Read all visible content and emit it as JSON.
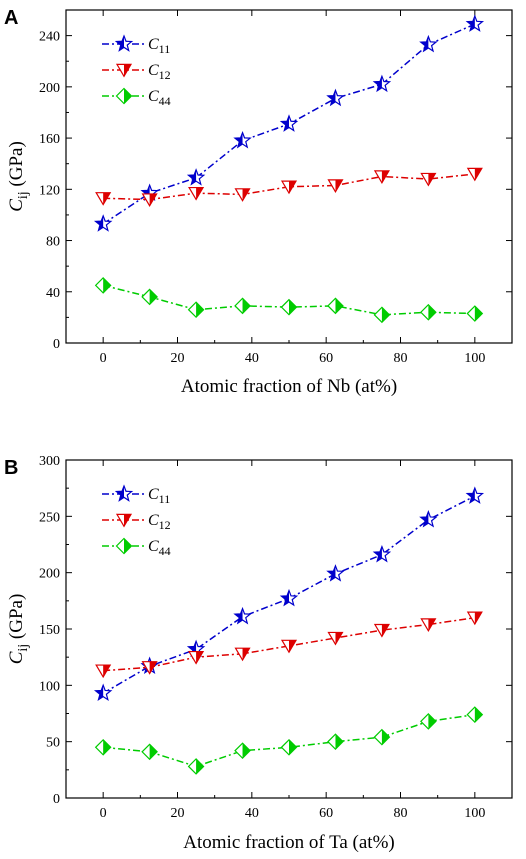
{
  "chart_data": [
    {
      "type": "line",
      "panel_label": "A",
      "xlabel": "Atomic fraction of Nb (at%)",
      "ylabel": "C",
      "ylabel_sub": "ij",
      "ylabel_unit": " (GPa)",
      "xlim": [
        -10,
        110
      ],
      "ylim": [
        0,
        260
      ],
      "xticks": [
        0,
        20,
        40,
        60,
        80,
        100
      ],
      "yticks": [
        0,
        40,
        80,
        120,
        160,
        200,
        240
      ],
      "x": [
        0,
        12.5,
        25,
        37.5,
        50,
        62.5,
        75,
        87.5,
        100
      ],
      "legend_position": "top-left",
      "series": [
        {
          "name": "C",
          "name_sub": "11",
          "color": "#0000cc",
          "marker": "star",
          "dash": "dash-dot",
          "values": [
            93,
            117,
            129,
            158,
            171,
            191,
            202,
            233,
            249
          ]
        },
        {
          "name": "C",
          "name_sub": "12",
          "color": "#dd0000",
          "marker": "triangle-down",
          "dash": "dash-dot",
          "values": [
            113,
            112,
            117,
            116,
            122,
            123,
            130,
            128,
            132
          ]
        },
        {
          "name": "C",
          "name_sub": "44",
          "color": "#00cc00",
          "marker": "diamond",
          "dash": "dash-dot",
          "values": [
            45,
            36,
            26,
            29,
            28,
            29,
            22,
            24,
            23
          ]
        }
      ]
    },
    {
      "type": "line",
      "panel_label": "B",
      "xlabel": "Atomic fraction of Ta (at%)",
      "ylabel": "C",
      "ylabel_sub": "ij",
      "ylabel_unit": " (GPa)",
      "xlim": [
        -10,
        110
      ],
      "ylim": [
        0,
        300
      ],
      "xticks": [
        0,
        20,
        40,
        60,
        80,
        100
      ],
      "yticks": [
        0,
        50,
        100,
        150,
        200,
        250,
        300
      ],
      "x": [
        0,
        12.5,
        25,
        37.5,
        50,
        62.5,
        75,
        87.5,
        100
      ],
      "legend_position": "top-left",
      "series": [
        {
          "name": "C",
          "name_sub": "11",
          "color": "#0000cc",
          "marker": "star",
          "dash": "dash-dot",
          "values": [
            93,
            117,
            132,
            161,
            177,
            199,
            216,
            247,
            268
          ]
        },
        {
          "name": "C",
          "name_sub": "12",
          "color": "#dd0000",
          "marker": "triangle-down",
          "dash": "dash-dot",
          "values": [
            113,
            116,
            125,
            128,
            135,
            142,
            149,
            154,
            160
          ]
        },
        {
          "name": "C",
          "name_sub": "44",
          "color": "#00cc00",
          "marker": "diamond",
          "dash": "dash-dot",
          "values": [
            45,
            41,
            28,
            42,
            45,
            50,
            54,
            68,
            74
          ]
        }
      ]
    }
  ]
}
